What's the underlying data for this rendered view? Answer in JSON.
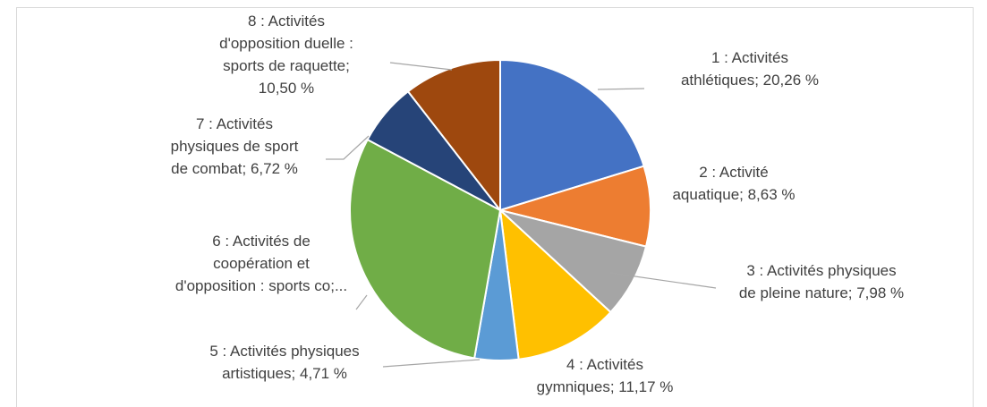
{
  "chart_data": {
    "type": "pie",
    "categories": [
      "1 : Activités\nathlétiques; 20,26 %",
      "2 : Activité\naquatique; 8,63 %",
      "3 : Activités physiques\nde pleine nature; 7,98 %",
      "4 : Activités\ngymniques; 11,17 %",
      "5 : Activités physiques\nartistiques; 4,71 %",
      "6 : Activités de\ncoopération et\nd'opposition : sports co;...",
      "7 : Activités\nphysiques de sport\nde combat; 6,72 %",
      "8 : Activités\nd'opposition duelle :\nsports de raquette;\n10,50 %"
    ],
    "values": [
      20.26,
      8.63,
      7.98,
      11.17,
      4.71,
      30.03,
      6.72,
      10.5
    ],
    "colors": [
      "#4472c4",
      "#ed7d31",
      "#a5a5a5",
      "#ffc000",
      "#5b9bd5",
      "#70ad47",
      "#264478",
      "#9e480e"
    ]
  }
}
